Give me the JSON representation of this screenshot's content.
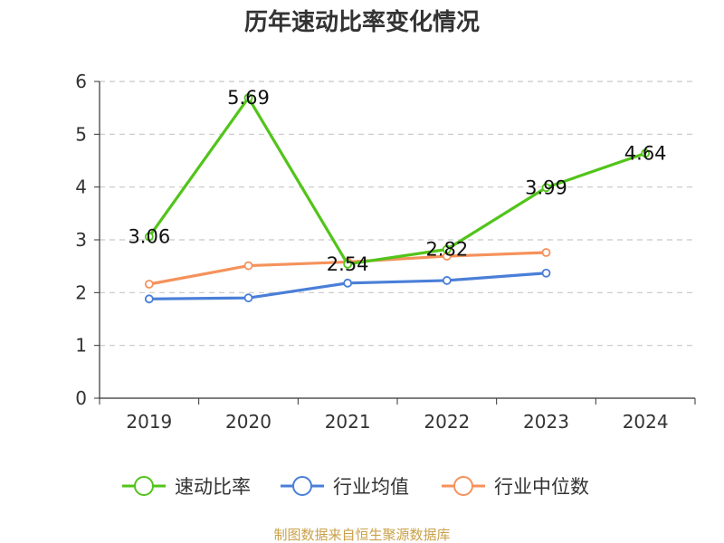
{
  "chart_data": {
    "type": "line",
    "title": "历年速动比率变化情况",
    "xlabel": "",
    "ylabel": "",
    "categories": [
      "2019",
      "2020",
      "2021",
      "2022",
      "2023",
      "2024"
    ],
    "ylim": [
      0,
      6
    ],
    "yticks": [
      "0",
      "1",
      "2",
      "3",
      "4",
      "5",
      "6"
    ],
    "grid": true,
    "legend_position": "bottom",
    "series": [
      {
        "name": "速动比率",
        "color": "#52c41a",
        "values": [
          3.06,
          5.69,
          2.54,
          2.82,
          3.99,
          4.64
        ],
        "labels": [
          "3.06",
          "5.69",
          "2.54",
          "2.82",
          "3.99",
          "4.64"
        ]
      },
      {
        "name": "行业均值",
        "color": "#4a7fd8",
        "values": [
          1.88,
          1.9,
          2.18,
          2.23,
          2.37,
          null
        ]
      },
      {
        "name": "行业中位数",
        "color": "#f5925b",
        "values": [
          2.16,
          2.51,
          2.58,
          2.69,
          2.76,
          null
        ]
      }
    ],
    "source": "制图数据来自恒生聚源数据库"
  }
}
